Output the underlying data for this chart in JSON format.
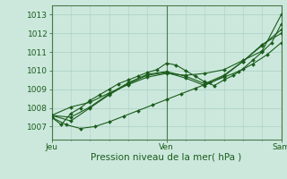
{
  "bg_color": "#cce8dd",
  "grid_color": "#aacfc4",
  "line_color": "#1a5c1a",
  "marker": "D",
  "marker_size": 2.0,
  "line_width": 0.8,
  "ylabel_ticks": [
    1007,
    1008,
    1009,
    1010,
    1011,
    1012,
    1013
  ],
  "ylim": [
    1006.3,
    1013.5
  ],
  "xlim": [
    0,
    48
  ],
  "xtick_positions": [
    0,
    24,
    48
  ],
  "xtick_labels": [
    "Jeu",
    "Ven",
    "Sam"
  ],
  "xlabel": "Pression niveau de la mer( hPa )",
  "series": [
    {
      "x": [
        0,
        2,
        4,
        6,
        8,
        10,
        12,
        14,
        16,
        18,
        20,
        22,
        24,
        26,
        28,
        30,
        32,
        34,
        36,
        38,
        40,
        42,
        44,
        46,
        48
      ],
      "y": [
        1007.5,
        1007.1,
        1007.7,
        1008.0,
        1008.4,
        1008.7,
        1009.0,
        1009.3,
        1009.5,
        1009.7,
        1009.9,
        1010.05,
        1010.4,
        1010.3,
        1010.0,
        1009.7,
        1009.4,
        1009.2,
        1009.5,
        1009.75,
        1010.1,
        1010.55,
        1011.0,
        1011.5,
        1012.5
      ]
    },
    {
      "x": [
        0,
        3,
        6,
        9,
        12,
        15,
        18,
        21,
        24,
        27,
        30,
        33,
        36,
        39,
        42,
        45,
        48
      ],
      "y": [
        1007.5,
        1007.1,
        1006.9,
        1007.0,
        1007.25,
        1007.55,
        1007.85,
        1008.15,
        1008.45,
        1008.75,
        1009.05,
        1009.35,
        1009.65,
        1009.95,
        1010.35,
        1010.85,
        1011.5
      ]
    },
    {
      "x": [
        0,
        4,
        8,
        12,
        16,
        20,
        24,
        28,
        32,
        36,
        40,
        44,
        48
      ],
      "y": [
        1007.6,
        1007.3,
        1008.0,
        1008.7,
        1009.3,
        1009.75,
        1009.9,
        1009.6,
        1009.2,
        1009.7,
        1010.5,
        1011.35,
        1012.2
      ]
    },
    {
      "x": [
        0,
        4,
        8,
        12,
        16,
        20,
        24,
        28,
        32,
        36,
        40,
        44,
        48
      ],
      "y": [
        1007.6,
        1007.5,
        1008.05,
        1008.75,
        1009.35,
        1009.8,
        1009.95,
        1009.7,
        1009.3,
        1009.75,
        1010.5,
        1011.4,
        1012.0
      ]
    },
    {
      "x": [
        0,
        4,
        8,
        12,
        16,
        20,
        24,
        28,
        32,
        36,
        40,
        44,
        48
      ],
      "y": [
        1007.6,
        1008.05,
        1008.3,
        1008.8,
        1009.25,
        1009.65,
        1009.85,
        1009.75,
        1009.85,
        1010.05,
        1010.55,
        1011.05,
        1013.0
      ]
    }
  ]
}
